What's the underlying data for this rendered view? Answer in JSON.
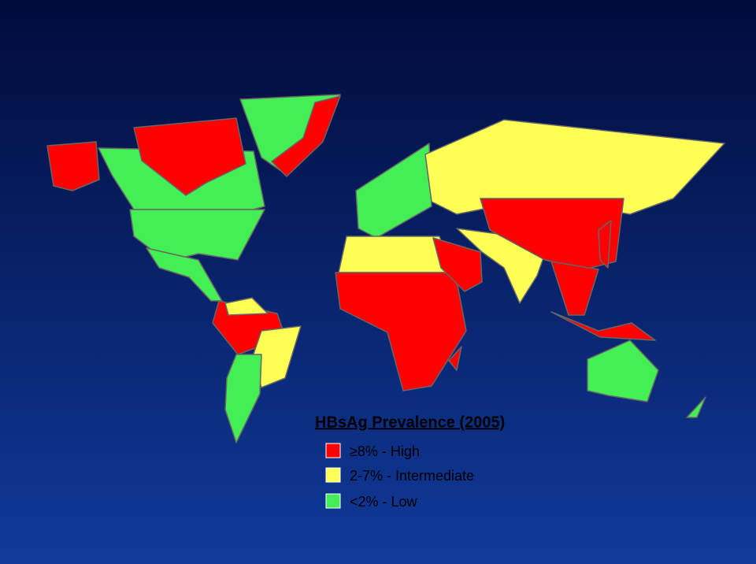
{
  "title": "HBsAg Prevalence (2005)",
  "legend": [
    {
      "label": "≥8% - High",
      "color": "#ff0000"
    },
    {
      "label": "2-7% - Intermediate",
      "color": "#ffff55"
    },
    {
      "label": "<2% - Low",
      "color": "#44ee55"
    }
  ]
}
